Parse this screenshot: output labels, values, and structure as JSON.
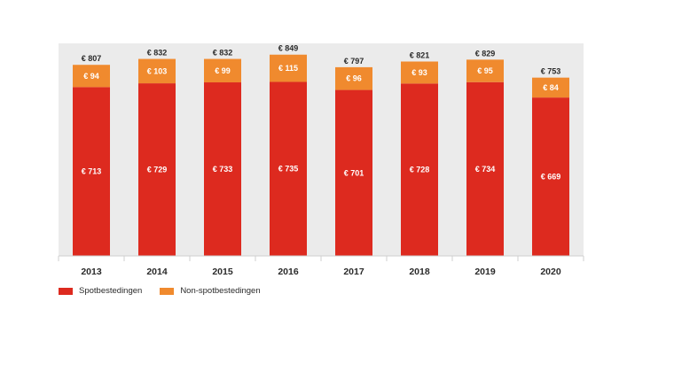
{
  "chart_data": {
    "type": "bar",
    "stacked": true,
    "categories": [
      "2013",
      "2014",
      "2015",
      "2016",
      "2017",
      "2018",
      "2019",
      "2020"
    ],
    "series": [
      {
        "name": "Spotbestedingen",
        "color": "#dd2a1f",
        "values": [
          713,
          729,
          733,
          735,
          701,
          728,
          734,
          669
        ],
        "labels": [
          "€ 713",
          "€ 729",
          "€ 733",
          "€ 735",
          "€ 701",
          "€ 728",
          "€ 734",
          "€ 669"
        ]
      },
      {
        "name": "Non-spotbestedingen",
        "color": "#f08a2e",
        "values": [
          94,
          103,
          99,
          115,
          96,
          93,
          95,
          84
        ],
        "labels": [
          "€ 94",
          "€ 103",
          "€ 99",
          "€ 115",
          "€ 96",
          "€ 93",
          "€ 95",
          "€ 84"
        ]
      }
    ],
    "totals": [
      807,
      832,
      832,
      849,
      797,
      821,
      829,
      753
    ],
    "total_labels": [
      "€ 807",
      "€ 832",
      "€ 832",
      "€ 849",
      "€ 797",
      "€ 821",
      "€ 829",
      "€ 753"
    ],
    "ylim": [
      0,
      849
    ],
    "grid": false,
    "legend_position": "bottom-left",
    "plot_background": "#ebebeb"
  }
}
